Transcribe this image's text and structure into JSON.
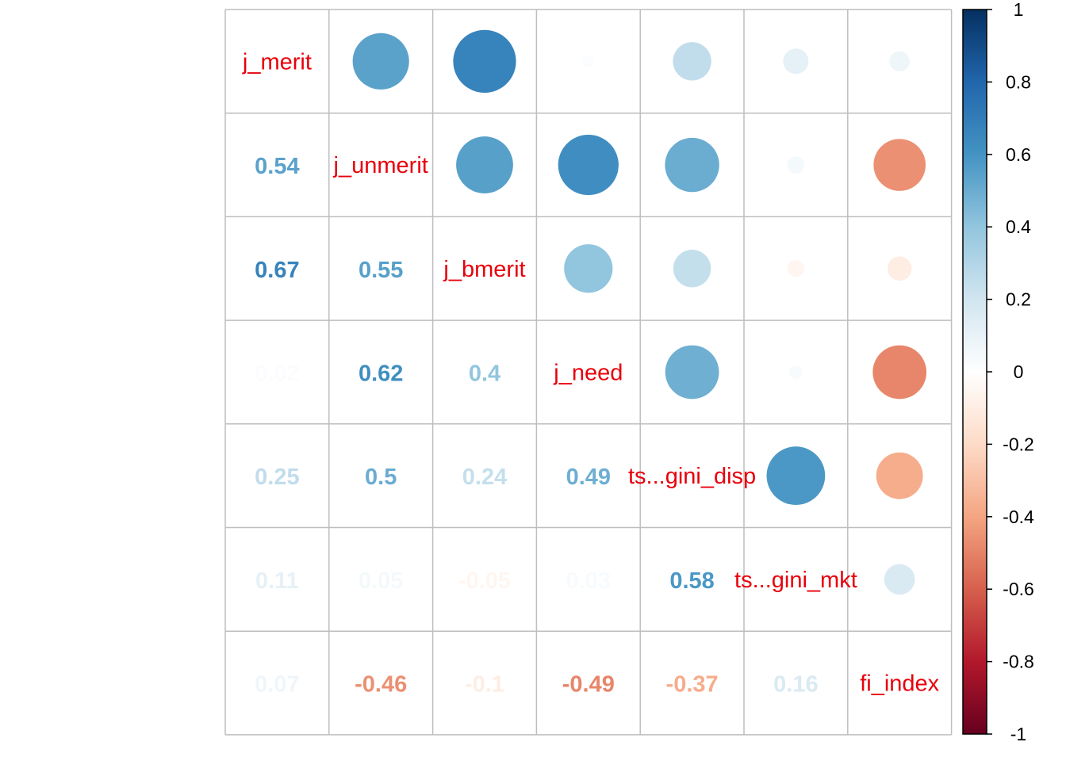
{
  "chart_data": {
    "type": "heatmap",
    "variables": [
      "j_merit",
      "j_unmerit",
      "j_bmerit",
      "j_need",
      "ts...gini_disp",
      "ts...gini_mkt",
      "fi_index"
    ],
    "matrix": [
      [
        1,
        0.54,
        0.67,
        0.02,
        0.25,
        0.11,
        0.07
      ],
      [
        0.54,
        1,
        0.55,
        0.62,
        0.5,
        0.05,
        -0.46
      ],
      [
        0.67,
        0.55,
        1,
        0.4,
        0.24,
        -0.05,
        -0.1
      ],
      [
        0.02,
        0.62,
        0.4,
        1,
        0.49,
        0.03,
        -0.49
      ],
      [
        0.25,
        0.5,
        0.24,
        0.49,
        1,
        0.58,
        -0.37
      ],
      [
        0.11,
        0.05,
        -0.05,
        0.03,
        0.58,
        1,
        0.16
      ],
      [
        0.07,
        -0.46,
        -0.1,
        -0.49,
        -0.37,
        0.16,
        1
      ]
    ],
    "lower_labels": [
      [
        "0.54"
      ],
      [
        "0.67",
        "0.55"
      ],
      [
        "0.02",
        "0.62",
        "0.4"
      ],
      [
        "0.25",
        "0.5",
        "0.24",
        "0.49"
      ],
      [
        "0.11",
        "0.05",
        "-0.05",
        "0.03",
        "0.58"
      ],
      [
        "0.07",
        "-0.46",
        "-0.1",
        "-0.49",
        "-0.37",
        "0.16"
      ]
    ],
    "upper_glyph": "circle",
    "diagonal": "variable names",
    "colorbar": {
      "range": [
        -1,
        1
      ],
      "ticks": [
        "1",
        "0.8",
        "0.6",
        "0.4",
        "0.2",
        "0",
        "-0.2",
        "-0.4",
        "-0.6",
        "-0.8",
        "-1"
      ],
      "placement": "right"
    },
    "colors": {
      "diagonal_label": "#e8000b",
      "grid": "#bebebe",
      "palette": [
        "#67001f",
        "#b2182b",
        "#d6604d",
        "#f4a582",
        "#fddbc7",
        "#ffffff",
        "#d1e5f0",
        "#92c5de",
        "#4393c3",
        "#2166ac",
        "#053061"
      ]
    },
    "title": "",
    "xlabel": "",
    "ylabel": ""
  }
}
